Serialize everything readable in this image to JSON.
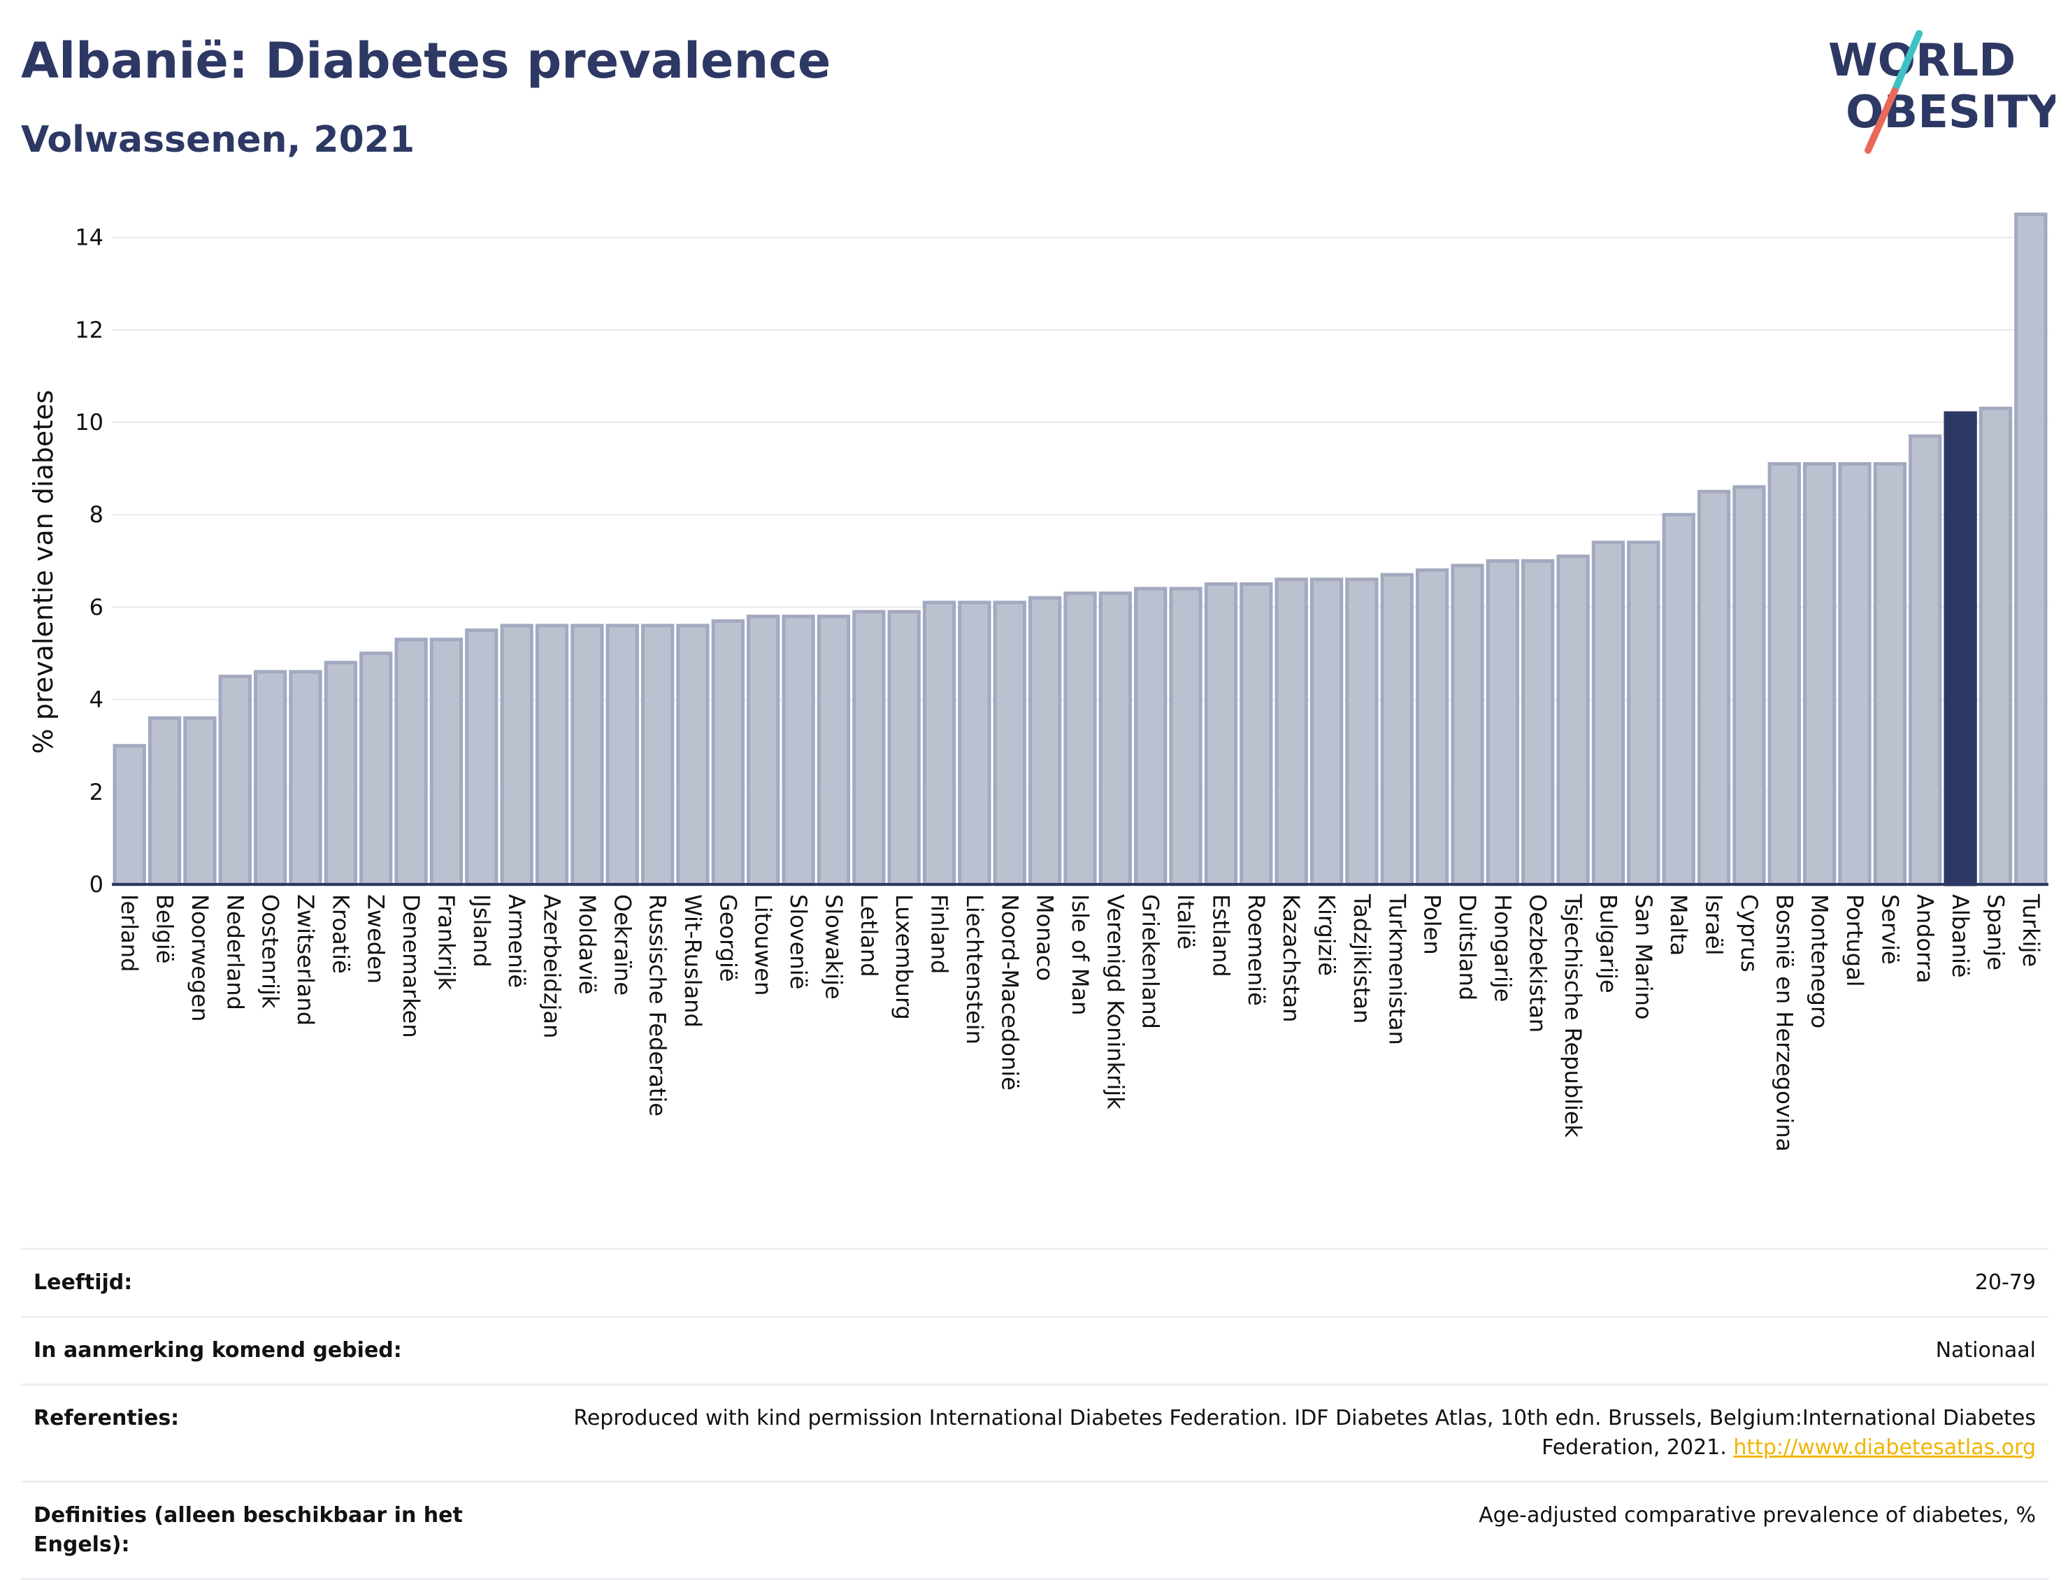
{
  "header": {
    "title": "Albanië: Diabetes prevalence",
    "subtitle": "Volwassenen, 2021"
  },
  "logo": {
    "line1": "WORLD",
    "line2": "OBESITY",
    "colors": {
      "text": "#2d3864",
      "slash_top": "#3ec1c3",
      "slash_bottom": "#e8695a"
    }
  },
  "colors": {
    "bar": "#bcc1d0",
    "bar_border": "#a3a9bf",
    "highlight": "#2d3864",
    "grid": "#e8e8ee",
    "axis": "#2d3864"
  },
  "chart_data": {
    "type": "bar",
    "ylabel": "% prevalentie van diabetes",
    "ylim": [
      0,
      14.6
    ],
    "yticks": [
      0,
      2,
      4,
      6,
      8,
      10,
      12,
      14
    ],
    "grid": true,
    "highlight": "Albanië",
    "categories": [
      "Ierland",
      "België",
      "Noorwegen",
      "Nederland",
      "Oostenrijk",
      "Zwitserland",
      "Kroatië",
      "Zweden",
      "Denemarken",
      "Frankrijk",
      "IJsland",
      "Armenië",
      "Azerbeidzjan",
      "Moldavië",
      "Oekraïne",
      "Russische Federatie",
      "Wit-Rusland",
      "Georgië",
      "Litouwen",
      "Slovenië",
      "Slowakije",
      "Letland",
      "Luxemburg",
      "Finland",
      "Liechtenstein",
      "Noord-Macedonië",
      "Monaco",
      "Isle of Man",
      "Verenigd Koninkrijk",
      "Griekenland",
      "Italië",
      "Estland",
      "Roemenië",
      "Kazachstan",
      "Kirgizië",
      "Tadzjikistan",
      "Turkmenistan",
      "Polen",
      "Duitsland",
      "Hongarije",
      "Oezbekistan",
      "Tsjechische Republiek",
      "Bulgarije",
      "San Marino",
      "Malta",
      "Israël",
      "Cyprus",
      "Bosnië en Herzegovina",
      "Montenegro",
      "Portugal",
      "Servië",
      "Andorra",
      "Albanië",
      "Spanje",
      "Turkije"
    ],
    "values": [
      3.0,
      3.6,
      3.6,
      4.5,
      4.6,
      4.6,
      4.8,
      5.0,
      5.3,
      5.3,
      5.5,
      5.6,
      5.6,
      5.6,
      5.6,
      5.6,
      5.6,
      5.7,
      5.8,
      5.8,
      5.8,
      5.9,
      5.9,
      6.1,
      6.1,
      6.1,
      6.2,
      6.3,
      6.3,
      6.4,
      6.4,
      6.5,
      6.5,
      6.6,
      6.6,
      6.6,
      6.7,
      6.8,
      6.9,
      7.0,
      7.0,
      7.1,
      7.4,
      7.4,
      8.0,
      8.5,
      8.6,
      9.1,
      9.1,
      9.1,
      9.1,
      9.7,
      10.2,
      10.3,
      14.5
    ]
  },
  "info": {
    "rows": [
      {
        "key": "Leeftijd:",
        "value": "20-79"
      },
      {
        "key": "In aanmerking komend gebied:",
        "value": "Nationaal"
      },
      {
        "key": "Referenties:",
        "value": "Reproduced with kind permission International Diabetes Federation.  IDF Diabetes Atlas, 10th edn. Brussels, Belgium:International Diabetes Federation, 2021. ",
        "link": "http://www.diabetesatlas.org"
      },
      {
        "key": "Definities (alleen beschikbaar in het Engels):",
        "value": "Age-adjusted comparative prevalence of diabetes, %"
      }
    ]
  }
}
